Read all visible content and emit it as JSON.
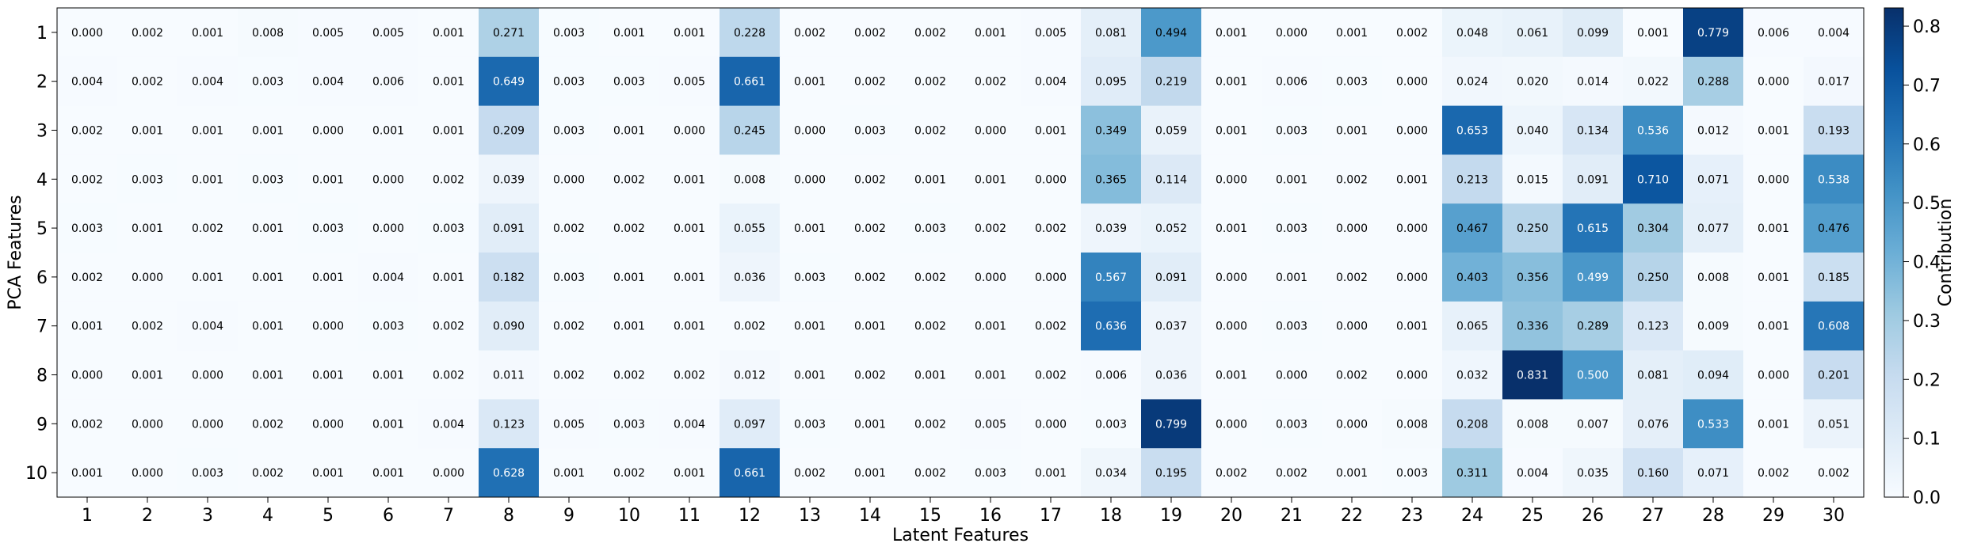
{
  "chart_data": {
    "type": "heatmap",
    "title": "",
    "xlabel": "Latent Features",
    "ylabel": "PCA Features",
    "colorbar_label": "Contribution",
    "colormap": "Blues",
    "vmin": 0.0,
    "vmax": 0.831,
    "colorbar_ticks": [
      "0.0",
      "0.1",
      "0.2",
      "0.3",
      "0.4",
      "0.5",
      "0.6",
      "0.7",
      "0.8"
    ],
    "x_categories": [
      "1",
      "2",
      "3",
      "4",
      "5",
      "6",
      "7",
      "8",
      "9",
      "10",
      "11",
      "12",
      "13",
      "14",
      "15",
      "16",
      "17",
      "18",
      "19",
      "20",
      "21",
      "22",
      "23",
      "24",
      "25",
      "26",
      "27",
      "28",
      "29",
      "30"
    ],
    "y_categories": [
      "1",
      "2",
      "3",
      "4",
      "5",
      "6",
      "7",
      "8",
      "9",
      "10"
    ],
    "values": [
      [
        0.0,
        0.002,
        0.001,
        0.008,
        0.005,
        0.005,
        0.001,
        0.271,
        0.003,
        0.001,
        0.001,
        0.228,
        0.002,
        0.002,
        0.002,
        0.001,
        0.005,
        0.081,
        0.494,
        0.001,
        0.0,
        0.001,
        0.002,
        0.048,
        0.061,
        0.099,
        0.001,
        0.779,
        0.006,
        0.004
      ],
      [
        0.004,
        0.002,
        0.004,
        0.003,
        0.004,
        0.006,
        0.001,
        0.649,
        0.003,
        0.003,
        0.005,
        0.661,
        0.001,
        0.002,
        0.002,
        0.002,
        0.004,
        0.095,
        0.219,
        0.001,
        0.006,
        0.003,
        0.0,
        0.024,
        0.02,
        0.014,
        0.022,
        0.288,
        0.0,
        0.017
      ],
      [
        0.002,
        0.001,
        0.001,
        0.001,
        0.0,
        0.001,
        0.001,
        0.209,
        0.003,
        0.001,
        0.0,
        0.245,
        0.0,
        0.003,
        0.002,
        0.0,
        0.001,
        0.349,
        0.059,
        0.001,
        0.003,
        0.001,
        0.0,
        0.653,
        0.04,
        0.134,
        0.536,
        0.012,
        0.001,
        0.193
      ],
      [
        0.002,
        0.003,
        0.001,
        0.003,
        0.001,
        0.0,
        0.002,
        0.039,
        0.0,
        0.002,
        0.001,
        0.008,
        0.0,
        0.002,
        0.001,
        0.001,
        0.0,
        0.365,
        0.114,
        0.0,
        0.001,
        0.002,
        0.001,
        0.213,
        0.015,
        0.091,
        0.71,
        0.071,
        0.0,
        0.538
      ],
      [
        0.003,
        0.001,
        0.002,
        0.001,
        0.003,
        0.0,
        0.003,
        0.091,
        0.002,
        0.002,
        0.001,
        0.055,
        0.001,
        0.002,
        0.003,
        0.002,
        0.002,
        0.039,
        0.052,
        0.001,
        0.003,
        0.0,
        0.0,
        0.467,
        0.25,
        0.615,
        0.304,
        0.077,
        0.001,
        0.476
      ],
      [
        0.002,
        0.0,
        0.001,
        0.001,
        0.001,
        0.004,
        0.001,
        0.182,
        0.003,
        0.001,
        0.001,
        0.036,
        0.003,
        0.002,
        0.002,
        0.0,
        0.0,
        0.567,
        0.091,
        0.0,
        0.001,
        0.002,
        0.0,
        0.403,
        0.356,
        0.499,
        0.25,
        0.008,
        0.001,
        0.185
      ],
      [
        0.001,
        0.002,
        0.004,
        0.001,
        0.0,
        0.003,
        0.002,
        0.09,
        0.002,
        0.001,
        0.001,
        0.002,
        0.001,
        0.001,
        0.002,
        0.001,
        0.002,
        0.636,
        0.037,
        0.0,
        0.003,
        0.0,
        0.001,
        0.065,
        0.336,
        0.289,
        0.123,
        0.009,
        0.001,
        0.608
      ],
      [
        0.0,
        0.001,
        0.0,
        0.001,
        0.001,
        0.001,
        0.002,
        0.011,
        0.002,
        0.002,
        0.002,
        0.012,
        0.001,
        0.002,
        0.001,
        0.001,
        0.002,
        0.006,
        0.036,
        0.001,
        0.0,
        0.002,
        0.0,
        0.032,
        0.831,
        0.5,
        0.081,
        0.094,
        0.0,
        0.201
      ],
      [
        0.002,
        0.0,
        0.0,
        0.002,
        0.0,
        0.001,
        0.004,
        0.123,
        0.005,
        0.003,
        0.004,
        0.097,
        0.003,
        0.001,
        0.002,
        0.005,
        0.0,
        0.003,
        0.799,
        0.0,
        0.003,
        0.0,
        0.008,
        0.208,
        0.008,
        0.007,
        0.076,
        0.533,
        0.001,
        0.051
      ],
      [
        0.001,
        0.0,
        0.003,
        0.002,
        0.001,
        0.001,
        0.0,
        0.628,
        0.001,
        0.002,
        0.001,
        0.661,
        0.002,
        0.001,
        0.002,
        0.003,
        0.001,
        0.034,
        0.195,
        0.002,
        0.002,
        0.001,
        0.003,
        0.311,
        0.004,
        0.035,
        0.16,
        0.071,
        0.002,
        0.002
      ]
    ]
  }
}
